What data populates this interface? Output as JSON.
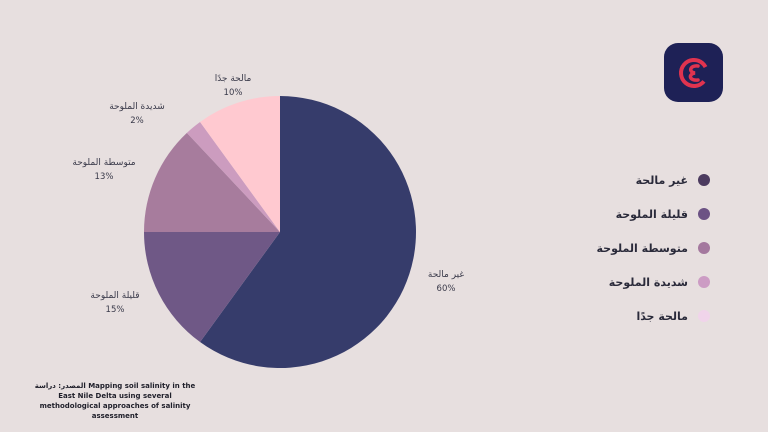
{
  "chart_data": {
    "type": "pie",
    "slices": [
      {
        "label": "غير مالحة",
        "value": 60,
        "pct_label": "60%",
        "color": "#363c6b"
      },
      {
        "label": "قليلة الملوحة",
        "value": 15,
        "pct_label": "15%",
        "color": "#6f5886"
      },
      {
        "label": "متوسطة الملوحة",
        "value": 13,
        "pct_label": "13%",
        "color": "#a77c9d"
      },
      {
        "label": "شديدة الملوحة",
        "value": 2,
        "pct_label": "2%",
        "color": "#cc9cbf"
      },
      {
        "label": "مالحة جدًا",
        "value": 10,
        "pct_label": "10%",
        "color": "#ffc9d0"
      }
    ]
  },
  "legend": [
    {
      "label": "غير مالحة",
      "color": "#4c3b5f"
    },
    {
      "label": "قليلة الملوحة",
      "color": "#6c5284"
    },
    {
      "label": "متوسطة الملوحة",
      "color": "#a4789e"
    },
    {
      "label": "شديدة الملوحة",
      "color": "#cc9cc4"
    },
    {
      "label": "مالحة جدًا",
      "color": "#f0d4ea"
    }
  ],
  "logo": {
    "icon": "logo-mark",
    "bg_color": "#1e2156",
    "mark_color": "#e0334f"
  },
  "source": {
    "text": "المصدر: دراسة Mapping soil salinity in the East Nile Delta using several methodological approaches of salinity assessment"
  }
}
